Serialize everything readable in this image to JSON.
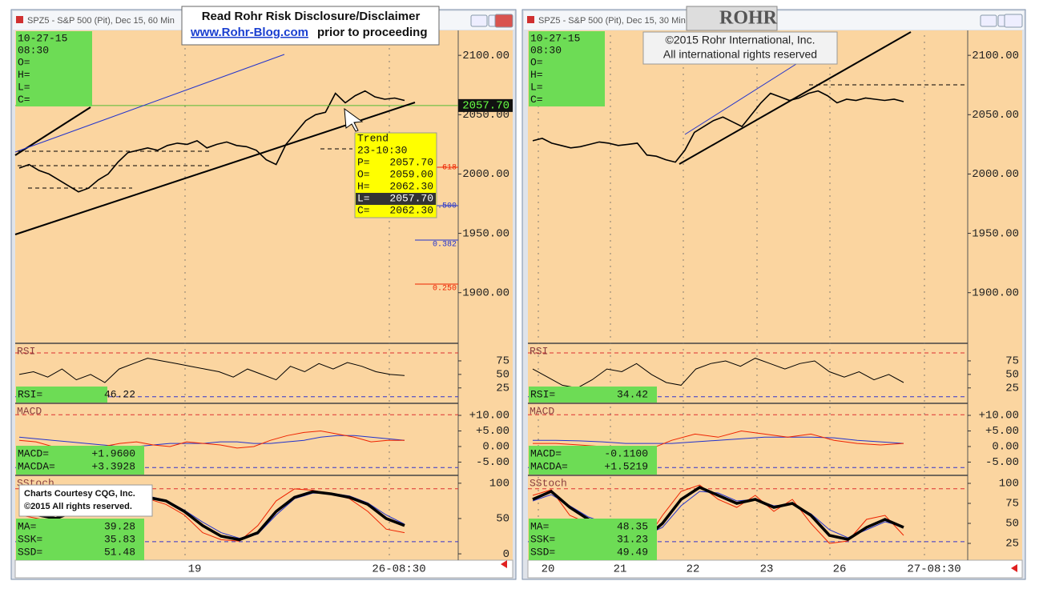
{
  "disclaimer": {
    "line1": "Read Rohr Risk Disclosure/Disclaimer",
    "link": "www.Rohr-Blog.com",
    "line2": "prior to proceeding"
  },
  "copyright": {
    "logo": "ROHR",
    "line1": "©2015 Rohr International, Inc.",
    "line2": "All international rights reserved"
  },
  "courtesy": {
    "line1": "Charts Courtesy CQG, Inc.",
    "line2": "©2015 All rights reserved."
  },
  "windows": [
    {
      "title": "SPZ5 - S&P 500 (Pit), Dec 15, 60 Min",
      "info": {
        "date": "10-27-15",
        "time": "08:30",
        "fields": [
          "O=",
          "H=",
          "L=",
          "C="
        ]
      },
      "price": {
        "ylim": [
          1858,
          2121
        ],
        "yticks": [
          {
            "value": 1900,
            "label": "1900.00"
          },
          {
            "value": 1950,
            "label": "1950.00"
          },
          {
            "value": 2000,
            "label": "2000.00"
          },
          {
            "value": 2050,
            "label": "2050.00"
          },
          {
            "value": 2100,
            "label": "2100.00"
          }
        ],
        "values": [
          2005,
          2008,
          2003,
          2000,
          1995,
          1990,
          1985,
          1988,
          1995,
          2000,
          2010,
          2018,
          2020,
          2022,
          2020,
          2024,
          2026,
          2025,
          2028,
          2022,
          2025,
          2027,
          2024,
          2023,
          2020,
          2012,
          2008,
          2025,
          2035,
          2045,
          2050,
          2052,
          2068,
          2060,
          2066,
          2070,
          2065,
          2063,
          2064,
          2062
        ],
        "last": {
          "value": 2057.7,
          "label": "2057.70"
        }
      },
      "fib": [
        "618",
        ".500",
        "0.382",
        "0.250"
      ],
      "trend": {
        "title": "Trend",
        "time": "23-10:30",
        "selected_row": 3,
        "rows": [
          {
            "name": "P=",
            "value": "2057.70"
          },
          {
            "name": "O=",
            "value": "2059.00"
          },
          {
            "name": "H=",
            "value": "2062.30"
          },
          {
            "name": "L=",
            "value": "2057.70"
          },
          {
            "name": "C=",
            "value": "2062.30"
          }
        ]
      },
      "rsi": {
        "label": "RSI",
        "ylim": [
          -2,
          106
        ],
        "yticks": [
          25,
          50,
          75
        ],
        "series": [
          {
            "color": "#000000",
            "values": [
              50,
              55,
              45,
              60,
              40,
              50,
              35,
              60,
              70,
              80,
              75,
              70,
              65,
              60,
              55,
              45,
              60,
              50,
              40,
              65,
              55,
              70,
              60,
              72,
              65,
              55,
              50,
              48
            ]
          }
        ],
        "readout": [
          {
            "name": "RSI=",
            "value": "46.22"
          }
        ]
      },
      "macd": {
        "label": "MACD",
        "ylim": [
          -9,
          13.6
        ],
        "yticks": [
          {
            "value": -5,
            "label": "-5.00"
          },
          {
            "value": 0,
            "label": "0.00"
          },
          {
            "value": 5,
            "label": "+5.00"
          },
          {
            "value": 10,
            "label": "+10.00"
          }
        ],
        "series": [
          {
            "color": "#2233cc",
            "values": [
              3,
              2.5,
              2,
              1.5,
              1,
              0.5,
              0,
              0,
              0.5,
              1,
              1,
              1,
              1.5,
              1.5,
              1,
              1,
              1.5,
              2,
              3,
              3.5,
              3.5,
              3,
              2.5,
              2
            ]
          },
          {
            "color": "#ee2200",
            "values": [
              2,
              1.5,
              0,
              -0.5,
              -1,
              0,
              1,
              1.5,
              0.5,
              0,
              1.5,
              1,
              0.5,
              -0.5,
              0,
              2,
              3.5,
              4.5,
              5,
              4,
              3,
              1.5,
              2,
              2
            ]
          }
        ],
        "readout": [
          {
            "name": "MACD=",
            "value": "+1.9600"
          },
          {
            "name": "MACDA=",
            "value": "+3.3928"
          }
        ]
      },
      "stoch": {
        "label": "SStoch",
        "ylim": [
          -9,
          110
        ],
        "yticks": [
          0,
          50,
          100
        ],
        "series": [
          {
            "color": "#ee2200",
            "values": [
              55,
              50,
              45,
              70,
              95,
              92,
              85,
              78,
              70,
              55,
              30,
              20,
              18,
              40,
              75,
              92,
              90,
              85,
              78,
              60,
              35,
              30
            ]
          },
          {
            "color": "#2233cc",
            "values": [
              58,
              55,
              50,
              58,
              80,
              90,
              88,
              82,
              76,
              62,
              45,
              30,
              22,
              28,
              55,
              78,
              86,
              86,
              82,
              72,
              55,
              42
            ]
          },
          {
            "color": "#000000",
            "values": [
              60,
              55,
              50,
              60,
              85,
              90,
              88,
              80,
              75,
              60,
              40,
              25,
              20,
              30,
              60,
              80,
              88,
              85,
              80,
              70,
              50,
              40
            ]
          }
        ],
        "readout": [
          {
            "name": "MA=",
            "value": "39.28"
          },
          {
            "name": "SSK=",
            "value": "35.83"
          },
          {
            "name": "SSD=",
            "value": "51.48"
          }
        ]
      },
      "xlabels": [
        "19",
        "26-08:30"
      ]
    },
    {
      "title": "SPZ5 - S&P 500 (Pit), Dec 15, 30 Min",
      "info": {
        "date": "10-27-15",
        "time": "08:30",
        "fields": [
          "O=",
          "H=",
          "L=",
          "C="
        ]
      },
      "price": {
        "ylim": [
          1858,
          2121
        ],
        "yticks": [
          {
            "value": 1900,
            "label": "1900.00"
          },
          {
            "value": 1950,
            "label": "1950.00"
          },
          {
            "value": 2000,
            "label": "2000.00"
          },
          {
            "value": 2050,
            "label": "2050.00"
          },
          {
            "value": 2100,
            "label": "2100.00"
          }
        ],
        "values": [
          2028,
          2030,
          2026,
          2024,
          2022,
          2023,
          2025,
          2027,
          2026,
          2024,
          2025,
          2026,
          2016,
          2015,
          2012,
          2010,
          2020,
          2035,
          2040,
          2045,
          2048,
          2044,
          2040,
          2050,
          2060,
          2068,
          2065,
          2062,
          2064,
          2068,
          2070,
          2066,
          2060,
          2063,
          2062,
          2064,
          2063,
          2062,
          2063,
          2061
        ]
      },
      "rsi": {
        "label": "RSI",
        "ylim": [
          -2,
          106
        ],
        "yticks": [
          25,
          50,
          75
        ],
        "series": [
          {
            "color": "#000000",
            "values": [
              60,
              45,
              30,
              25,
              40,
              60,
              55,
              70,
              50,
              35,
              30,
              60,
              70,
              75,
              65,
              80,
              70,
              60,
              70,
              75,
              55,
              45,
              55,
              40,
              50,
              35
            ]
          }
        ],
        "readout": [
          {
            "name": "RSI=",
            "value": "34.42"
          }
        ]
      },
      "macd": {
        "label": "MACD",
        "ylim": [
          -9,
          13.6
        ],
        "yticks": [
          {
            "value": -5,
            "label": "-5.00"
          },
          {
            "value": 0,
            "label": "0.00"
          },
          {
            "value": 5,
            "label": "+5.00"
          },
          {
            "value": 10,
            "label": "+10.00"
          }
        ],
        "series": [
          {
            "color": "#2233cc",
            "values": [
              2,
              2,
              1.8,
              1.5,
              1,
              1,
              1,
              1.5,
              2,
              2.5,
              3,
              3,
              3,
              2.8,
              2,
              1.5,
              1
            ]
          },
          {
            "color": "#ee2200",
            "values": [
              1,
              1,
              0.5,
              0,
              -0.5,
              -1,
              2,
              4,
              3,
              5,
              4,
              3,
              4,
              2,
              1,
              0.5,
              1
            ]
          }
        ],
        "readout": [
          {
            "name": "MACD=",
            "value": "-0.1100"
          },
          {
            "name": "MACDA=",
            "value": "+1.5219"
          }
        ]
      },
      "stoch": {
        "label": "SStoch",
        "ylim": [
          4,
          109
        ],
        "yticks": [
          25,
          50,
          75,
          100
        ],
        "series": [
          {
            "color": "#ee2200",
            "values": [
              85,
              92,
              60,
              50,
              45,
              35,
              25,
              60,
              90,
              98,
              80,
              70,
              85,
              65,
              80,
              50,
              25,
              28,
              55,
              60,
              35
            ]
          },
          {
            "color": "#2233cc",
            "values": [
              78,
              86,
              72,
              58,
              50,
              42,
              34,
              45,
              72,
              90,
              88,
              78,
              80,
              72,
              74,
              62,
              42,
              32,
              42,
              52,
              46
            ]
          },
          {
            "color": "#000000",
            "values": [
              80,
              90,
              70,
              55,
              48,
              40,
              30,
              50,
              80,
              95,
              85,
              75,
              80,
              70,
              75,
              60,
              35,
              30,
              45,
              55,
              45
            ]
          }
        ],
        "readout": [
          {
            "name": "MA=",
            "value": "48.35"
          },
          {
            "name": "SSK=",
            "value": "31.23"
          },
          {
            "name": "SSD=",
            "value": "49.49"
          }
        ]
      },
      "xlabels": [
        "20",
        "21",
        "22",
        "23",
        "26",
        "27-08:30"
      ]
    }
  ]
}
